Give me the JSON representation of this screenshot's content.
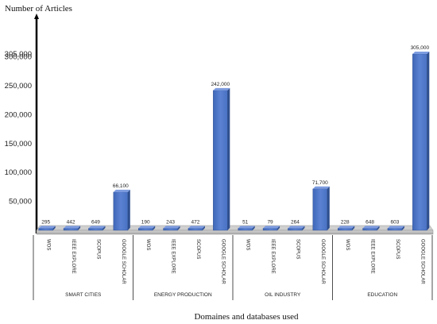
{
  "chart_data": {
    "type": "bar",
    "ylabel": "Number of Articles",
    "xlabel": "Domaines and databases used",
    "yticks": [
      50000,
      100000,
      150000,
      200000,
      250000,
      300000,
      305000
    ],
    "ytick_labels": [
      "50,000",
      "100,000",
      "150,000",
      "200,000",
      "250,000",
      "300,000",
      "305,000"
    ],
    "ylim": [
      0,
      325000
    ],
    "databases": [
      "WOS",
      "IEEE EXPLORE",
      "SCOPUS",
      "GOOGLE SCHOLAR"
    ],
    "groups": [
      {
        "domain": "SMART CITIES",
        "values": [
          295,
          442,
          649,
          66100
        ],
        "labels": [
          "295",
          "442",
          "649",
          "66,100"
        ]
      },
      {
        "domain": "ENERGY PRODUCTION",
        "values": [
          190,
          243,
          472,
          242000
        ],
        "labels": [
          "190",
          "243",
          "472",
          "242,000"
        ]
      },
      {
        "domain": "OIL INDUSTRY",
        "values": [
          51,
          79,
          264,
          71700
        ],
        "labels": [
          "51",
          "79",
          "264",
          "71,700"
        ]
      },
      {
        "domain": "EDUCATION",
        "values": [
          228,
          648,
          603,
          305000
        ],
        "labels": [
          "228",
          "648",
          "603",
          "305,000"
        ]
      }
    ],
    "bar_color": "#4a72c4",
    "grid": false
  }
}
